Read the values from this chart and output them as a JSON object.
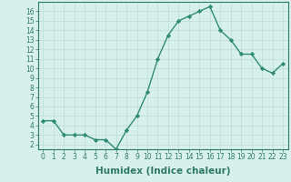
{
  "title": "",
  "xlabel": "Humidex (Indice chaleur)",
  "ylabel": "",
  "x": [
    0,
    1,
    2,
    3,
    4,
    5,
    6,
    7,
    8,
    9,
    10,
    11,
    12,
    13,
    14,
    15,
    16,
    17,
    18,
    19,
    20,
    21,
    22,
    23
  ],
  "y": [
    4.5,
    4.5,
    3.0,
    3.0,
    3.0,
    2.5,
    2.5,
    1.5,
    3.5,
    5.0,
    7.5,
    11.0,
    13.5,
    15.0,
    15.5,
    16.0,
    16.5,
    14.0,
    13.0,
    11.5,
    11.5,
    10.0,
    9.5,
    10.5
  ],
  "line_color": "#2e8b74",
  "marker": "D",
  "marker_size": 2.2,
  "background_color": "#d8f0ec",
  "grid_color": "#b8ddd8",
  "ylim": [
    1.5,
    17.0
  ],
  "xlim": [
    -0.5,
    23.5
  ],
  "yticks": [
    2,
    3,
    4,
    5,
    6,
    7,
    8,
    9,
    10,
    11,
    12,
    13,
    14,
    15,
    16
  ],
  "xticks": [
    0,
    1,
    2,
    3,
    4,
    5,
    6,
    7,
    8,
    9,
    10,
    11,
    12,
    13,
    14,
    15,
    16,
    17,
    18,
    19,
    20,
    21,
    22,
    23
  ],
  "tick_fontsize": 5.5,
  "xlabel_fontsize": 7.5,
  "tick_color": "#2e7a68",
  "label_color": "#2e7a68"
}
